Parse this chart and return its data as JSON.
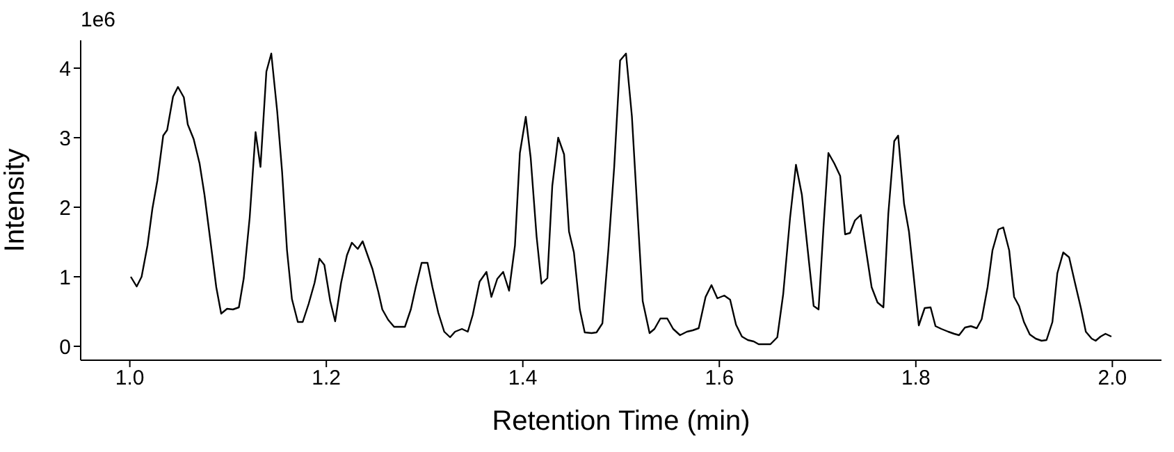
{
  "chart_data": {
    "type": "line",
    "xlabel": "Retention Time (min)",
    "ylabel": "Intensity",
    "annotations": [
      "1e6"
    ],
    "xlim": [
      0.95,
      2.05
    ],
    "ylim": [
      -0.2,
      4.4
    ],
    "xticks": [
      {
        "value": 1,
        "label": "1.0"
      },
      {
        "value": 1.2,
        "label": "1.2"
      },
      {
        "value": 1.4,
        "label": "1.4"
      },
      {
        "value": 1.6,
        "label": "1.6"
      },
      {
        "value": 1.8,
        "label": "1.8"
      },
      {
        "value": 2,
        "label": "2.0"
      }
    ],
    "yticks": [
      0,
      1,
      2,
      3,
      4
    ],
    "line_style": "solid",
    "x": [
      1.001,
      1.007,
      1.012,
      1.018,
      1.023,
      1.028,
      1.034,
      1.038,
      1.044,
      1.049,
      1.055,
      1.059,
      1.065,
      1.071,
      1.076,
      1.082,
      1.088,
      1.093,
      1.099,
      1.105,
      1.111,
      1.116,
      1.122,
      1.128,
      1.133,
      1.139,
      1.144,
      1.15,
      1.155,
      1.16,
      1.165,
      1.171,
      1.176,
      1.182,
      1.188,
      1.193,
      1.198,
      1.204,
      1.209,
      1.215,
      1.221,
      1.226,
      1.232,
      1.237,
      1.242,
      1.247,
      1.253,
      1.257,
      1.263,
      1.269,
      1.275,
      1.28,
      1.286,
      1.291,
      1.297,
      1.303,
      1.308,
      1.314,
      1.32,
      1.326,
      1.331,
      1.338,
      1.344,
      1.349,
      1.356,
      1.363,
      1.368,
      1.374,
      1.38,
      1.386,
      1.392,
      1.397,
      1.403,
      1.408,
      1.414,
      1.419,
      1.425,
      1.43,
      1.436,
      1.442,
      1.447,
      1.452,
      1.458,
      1.463,
      1.47,
      1.475,
      1.481,
      1.487,
      1.493,
      1.499,
      1.505,
      1.511,
      1.517,
      1.522,
      1.529,
      1.534,
      1.54,
      1.547,
      1.553,
      1.56,
      1.567,
      1.573,
      1.579,
      1.586,
      1.592,
      1.598,
      1.605,
      1.611,
      1.617,
      1.623,
      1.629,
      1.635,
      1.64,
      1.646,
      1.652,
      1.659,
      1.665,
      1.672,
      1.678,
      1.684,
      1.69,
      1.696,
      1.701,
      1.706,
      1.711,
      1.717,
      1.723,
      1.728,
      1.733,
      1.738,
      1.744,
      1.749,
      1.755,
      1.761,
      1.767,
      1.772,
      1.778,
      1.782,
      1.788,
      1.793,
      1.798,
      1.803,
      1.809,
      1.815,
      1.82,
      1.826,
      1.833,
      1.839,
      1.844,
      1.85,
      1.856,
      1.862,
      1.867,
      1.873,
      1.878,
      1.884,
      1.889,
      1.895,
      1.9,
      1.905,
      1.91,
      1.916,
      1.922,
      1.928,
      1.933,
      1.939,
      1.944,
      1.95,
      1.956,
      1.962,
      1.968,
      1.973,
      1.979,
      1.983,
      1.988,
      1.993,
      1.999
    ],
    "series": [
      {
        "color": "#000000",
        "values": [
          1.0,
          0.86,
          1.0,
          1.45,
          1.98,
          2.38,
          3.03,
          3.11,
          3.59,
          3.73,
          3.58,
          3.19,
          2.98,
          2.63,
          2.18,
          1.52,
          0.85,
          0.47,
          0.54,
          0.53,
          0.56,
          0.98,
          1.85,
          3.08,
          2.58,
          3.95,
          4.21,
          3.38,
          2.51,
          1.38,
          0.68,
          0.35,
          0.35,
          0.61,
          0.91,
          1.26,
          1.17,
          0.65,
          0.36,
          0.91,
          1.31,
          1.49,
          1.4,
          1.51,
          1.31,
          1.11,
          0.78,
          0.53,
          0.38,
          0.28,
          0.28,
          0.28,
          0.53,
          0.85,
          1.2,
          1.2,
          0.85,
          0.48,
          0.21,
          0.13,
          0.21,
          0.25,
          0.21,
          0.45,
          0.93,
          1.07,
          0.71,
          0.97,
          1.07,
          0.8,
          1.45,
          2.78,
          3.3,
          2.71,
          1.58,
          0.9,
          0.98,
          2.31,
          3.0,
          2.76,
          1.65,
          1.35,
          0.53,
          0.2,
          0.19,
          0.2,
          0.33,
          1.38,
          2.58,
          4.11,
          4.21,
          3.31,
          1.85,
          0.65,
          0.19,
          0.25,
          0.4,
          0.4,
          0.25,
          0.16,
          0.21,
          0.23,
          0.26,
          0.71,
          0.88,
          0.69,
          0.73,
          0.67,
          0.31,
          0.14,
          0.09,
          0.07,
          0.03,
          0.03,
          0.03,
          0.13,
          0.75,
          1.85,
          2.61,
          2.18,
          1.38,
          0.58,
          0.53,
          1.71,
          2.78,
          2.63,
          2.45,
          1.61,
          1.63,
          1.81,
          1.89,
          1.41,
          0.85,
          0.63,
          0.56,
          1.91,
          2.95,
          3.03,
          2.05,
          1.65,
          0.98,
          0.3,
          0.55,
          0.56,
          0.29,
          0.25,
          0.21,
          0.18,
          0.16,
          0.27,
          0.29,
          0.26,
          0.39,
          0.85,
          1.38,
          1.68,
          1.71,
          1.38,
          0.71,
          0.58,
          0.35,
          0.17,
          0.11,
          0.08,
          0.09,
          0.35,
          1.05,
          1.35,
          1.28,
          0.91,
          0.55,
          0.21,
          0.11,
          0.08,
          0.14,
          0.18,
          0.14
        ]
      }
    ]
  }
}
